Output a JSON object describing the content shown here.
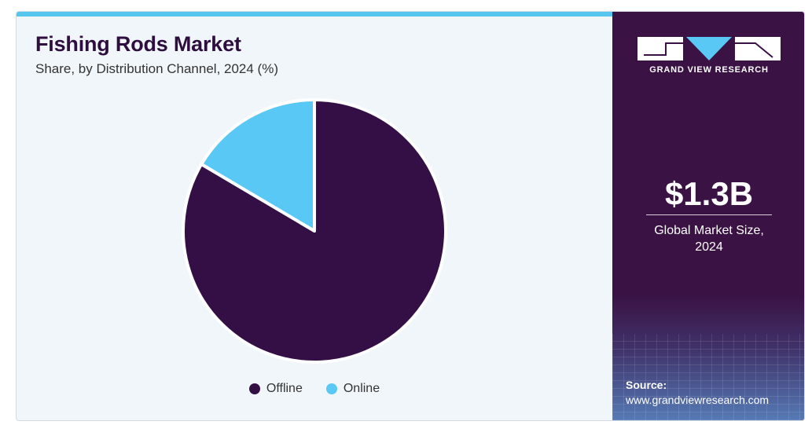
{
  "header": {
    "title": "Fishing Rods Market",
    "subtitle": "Share, by Distribution Channel, 2024 (%)"
  },
  "colors": {
    "offline": "#340f45",
    "online": "#5ac8f5",
    "accent_bar": "#55c7ee",
    "panel": "#3a1244"
  },
  "chart_data": {
    "type": "pie",
    "categories": [
      "Offline",
      "Online"
    ],
    "values": [
      83.5,
      16.5
    ],
    "unit": "%",
    "legend_position": "bottom"
  },
  "legend": {
    "offline_label": "Offline",
    "online_label": "Online"
  },
  "sidebar": {
    "brand": "GRAND VIEW RESEARCH",
    "market_value": "$1.3B",
    "market_label_line1": "Global Market Size,",
    "market_label_line2": "2024",
    "source_label": "Source:",
    "source_url": "www.grandviewresearch.com"
  }
}
